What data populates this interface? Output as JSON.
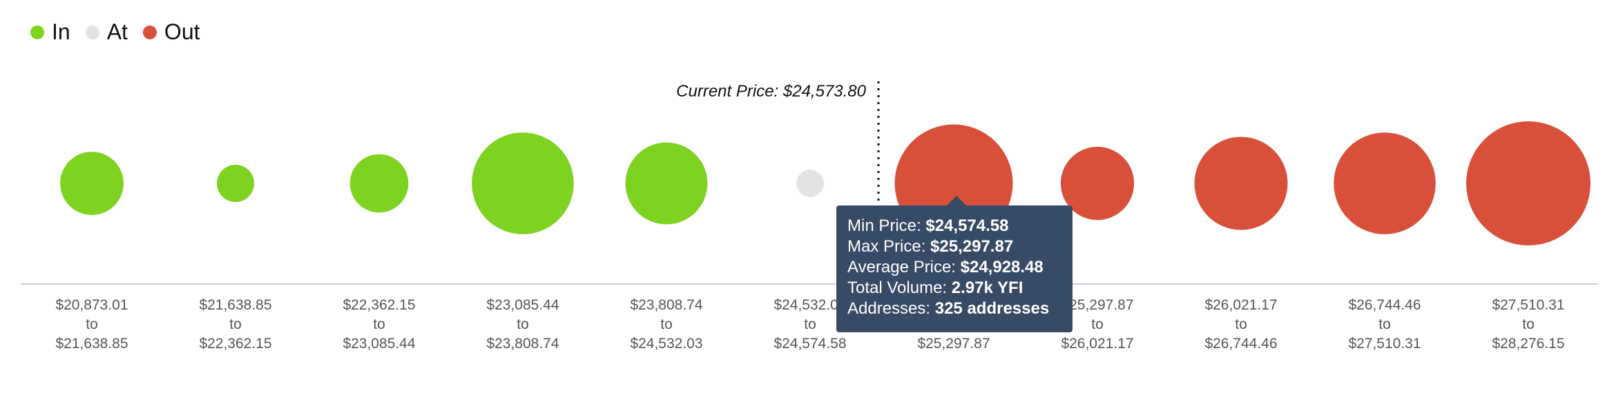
{
  "legend": [
    {
      "label": "In",
      "color": "#7ed321"
    },
    {
      "label": "At",
      "color": "#e3e3e3"
    },
    {
      "label": "Out",
      "color": "#d9503a"
    }
  ],
  "current_price_label": "Current Price: $24,573.80",
  "tooltip": {
    "min_label": "Min Price: ",
    "min_value": "$24,574.58",
    "max_label": "Max Price: ",
    "max_value": "$25,297.87",
    "avg_label": "Average Price: ",
    "avg_value": "$24,928.48",
    "vol_label": "Total Volume: ",
    "vol_value": "2.97k YFI",
    "addr_label": "Addresses: ",
    "addr_value": "325 addresses"
  },
  "chart_data": {
    "type": "scatter",
    "current_price": "$24,573.80",
    "categories": [
      {
        "from": "$20,873.01",
        "to": "$21,638.85",
        "status": "In",
        "relative_size": 0.51
      },
      {
        "from": "$21,638.85",
        "to": "$22,362.15",
        "status": "In",
        "relative_size": 0.3
      },
      {
        "from": "$22,362.15",
        "to": "$23,085.44",
        "status": "In",
        "relative_size": 0.47
      },
      {
        "from": "$23,085.44",
        "to": "$23,808.74",
        "status": "In",
        "relative_size": 0.82
      },
      {
        "from": "$23,808.74",
        "to": "$24,532.03",
        "status": "In",
        "relative_size": 0.66
      },
      {
        "from": "$24,532.03",
        "to": "$24,574.58",
        "status": "At",
        "relative_size": 0.22
      },
      {
        "from": "$24,574.58",
        "to": "$25,297.87",
        "status": "Out",
        "relative_size": 0.95
      },
      {
        "from": "$25,297.87",
        "to": "$26,021.17",
        "status": "Out",
        "relative_size": 0.59
      },
      {
        "from": "$26,021.17",
        "to": "$26,744.46",
        "status": "Out",
        "relative_size": 0.75
      },
      {
        "from": "$26,744.46",
        "to": "$27,510.31",
        "status": "Out",
        "relative_size": 0.82
      },
      {
        "from": "$27,510.31",
        "to": "$28,276.15",
        "status": "Out",
        "relative_size": 1.0
      }
    ],
    "connector": "to"
  }
}
